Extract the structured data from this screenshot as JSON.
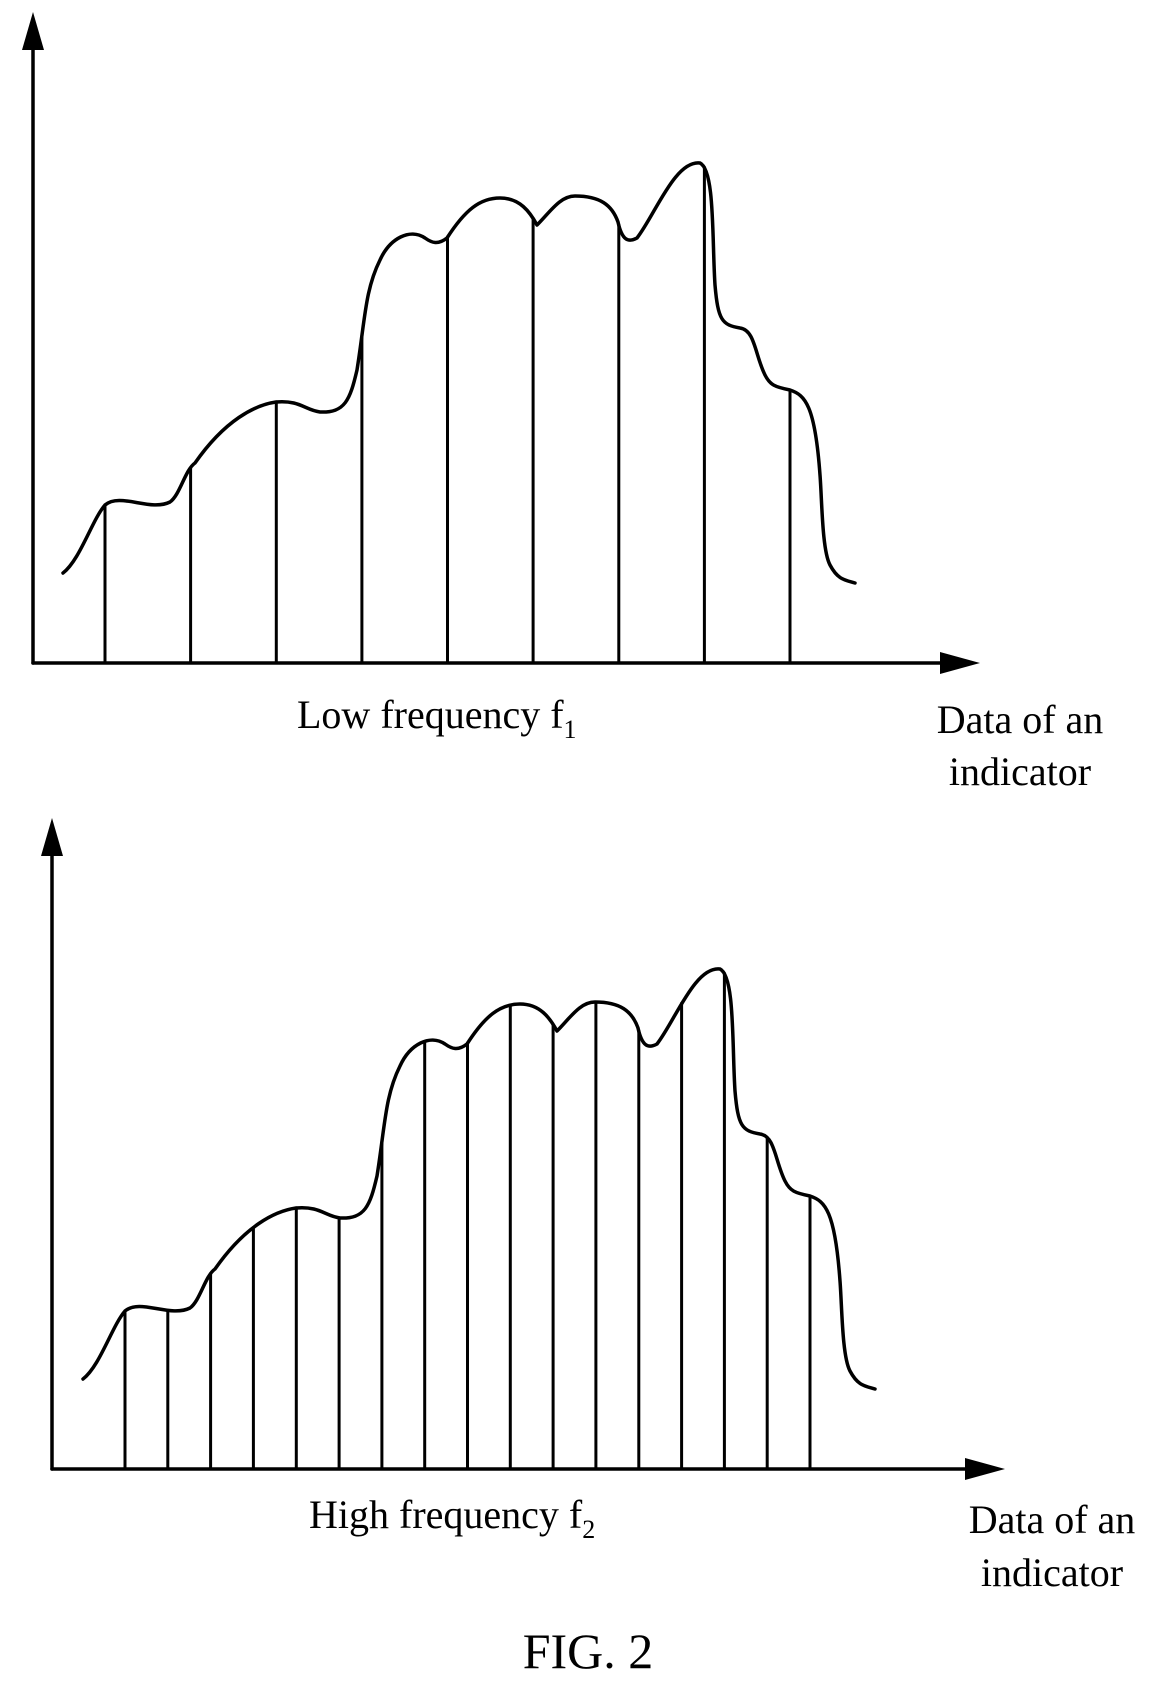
{
  "figure_label": "FIG. 2",
  "panels": [
    {
      "id": "top",
      "caption_main": "Low frequency f",
      "caption_sub": "1",
      "x_axis_label_line1": "Data of an",
      "x_axis_label_line2": "indicator",
      "sample_count": 9
    },
    {
      "id": "bottom",
      "caption_main": "High frequency f",
      "caption_sub": "2",
      "x_axis_label_line1": "Data of an",
      "x_axis_label_line2": "indicator",
      "sample_count": 17
    }
  ]
}
